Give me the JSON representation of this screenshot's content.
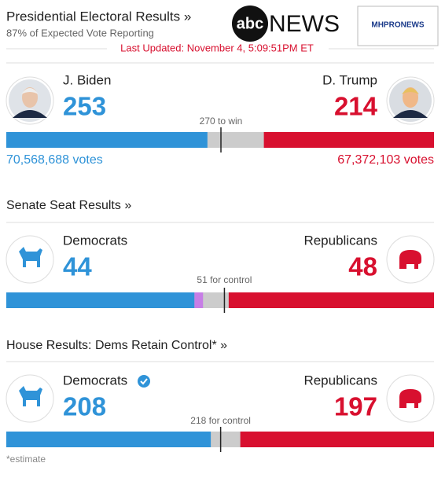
{
  "header": {
    "title": "Presidential Electoral Results »",
    "subtitle": "87% of Expected Vote Reporting",
    "updated": "Last Updated: November 4, 5:09:51PM ET",
    "logo_abc": "abc",
    "logo_news": "NEWS",
    "badge": "MHPRONEWS"
  },
  "sections": {
    "presidential": {
      "left": {
        "name": "J. Biden",
        "count": 253,
        "votes": "70,568,688 votes",
        "color": "#2f93d8"
      },
      "right": {
        "name": "D. Trump",
        "count": 214,
        "votes": "67,372,103 votes",
        "color": "#d8102f"
      },
      "threshold": {
        "value": 270,
        "label": "270 to win"
      },
      "scale": [
        0,
        538
      ]
    },
    "senate": {
      "title": "Senate Seat Results »",
      "left": {
        "name": "Democrats",
        "count": 44,
        "color": "#2f93d8"
      },
      "other": {
        "count": 2,
        "color": "#c77ee6"
      },
      "right": {
        "name": "Republicans",
        "count": 48,
        "color": "#d8102f"
      },
      "threshold": {
        "value": 51,
        "label": "51 for control"
      },
      "scale": [
        0,
        100
      ]
    },
    "house": {
      "title": "House Results: Dems Retain Control* »",
      "left": {
        "name": "Democrats",
        "count": 208,
        "color": "#2f93d8"
      },
      "right": {
        "name": "Republicans",
        "count": 197,
        "color": "#d8102f"
      },
      "threshold": {
        "value": 218,
        "label": "218 for control"
      },
      "scale": [
        0,
        435
      ]
    }
  },
  "footnote": "*estimate"
}
